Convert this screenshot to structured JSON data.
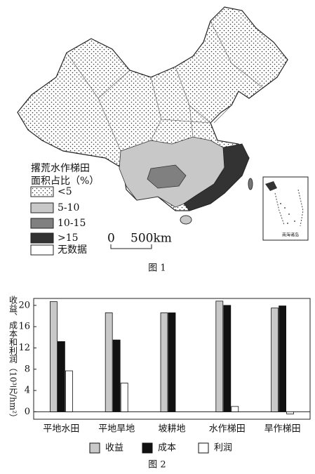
{
  "map": {
    "legend": {
      "title_lines": [
        "撂荒水作梯田",
        "面积占比（%）"
      ],
      "items": [
        "<5",
        "5-10",
        "10-15",
        ">15",
        "无数据"
      ]
    },
    "scale": {
      "start": "0",
      "end": "500km"
    },
    "inset_label": "南海诸岛",
    "caption": "图 1"
  },
  "chart_data": {
    "type": "bar",
    "y_label": "收益、成本和利润（10³元/hm²）",
    "categories": [
      "平地水田",
      "平地旱地",
      "坡耕地",
      "水作梯田",
      "旱作梯田"
    ],
    "series": [
      {
        "name": "收益",
        "color": "#c8c8c8",
        "values": [
          20.7,
          18.6,
          18.6,
          20.8,
          19.5
        ]
      },
      {
        "name": "成本",
        "color": "#111111",
        "values": [
          13.2,
          13.5,
          18.6,
          20.0,
          19.9
        ]
      },
      {
        "name": "利润",
        "color": "#ffffff",
        "values": [
          7.7,
          5.4,
          0,
          1.0,
          -0.4
        ]
      }
    ],
    "ylim": [
      -1.4,
      21.3
    ],
    "yticks": [
      0,
      4,
      8,
      12,
      16,
      20
    ],
    "caption": "图 2"
  }
}
